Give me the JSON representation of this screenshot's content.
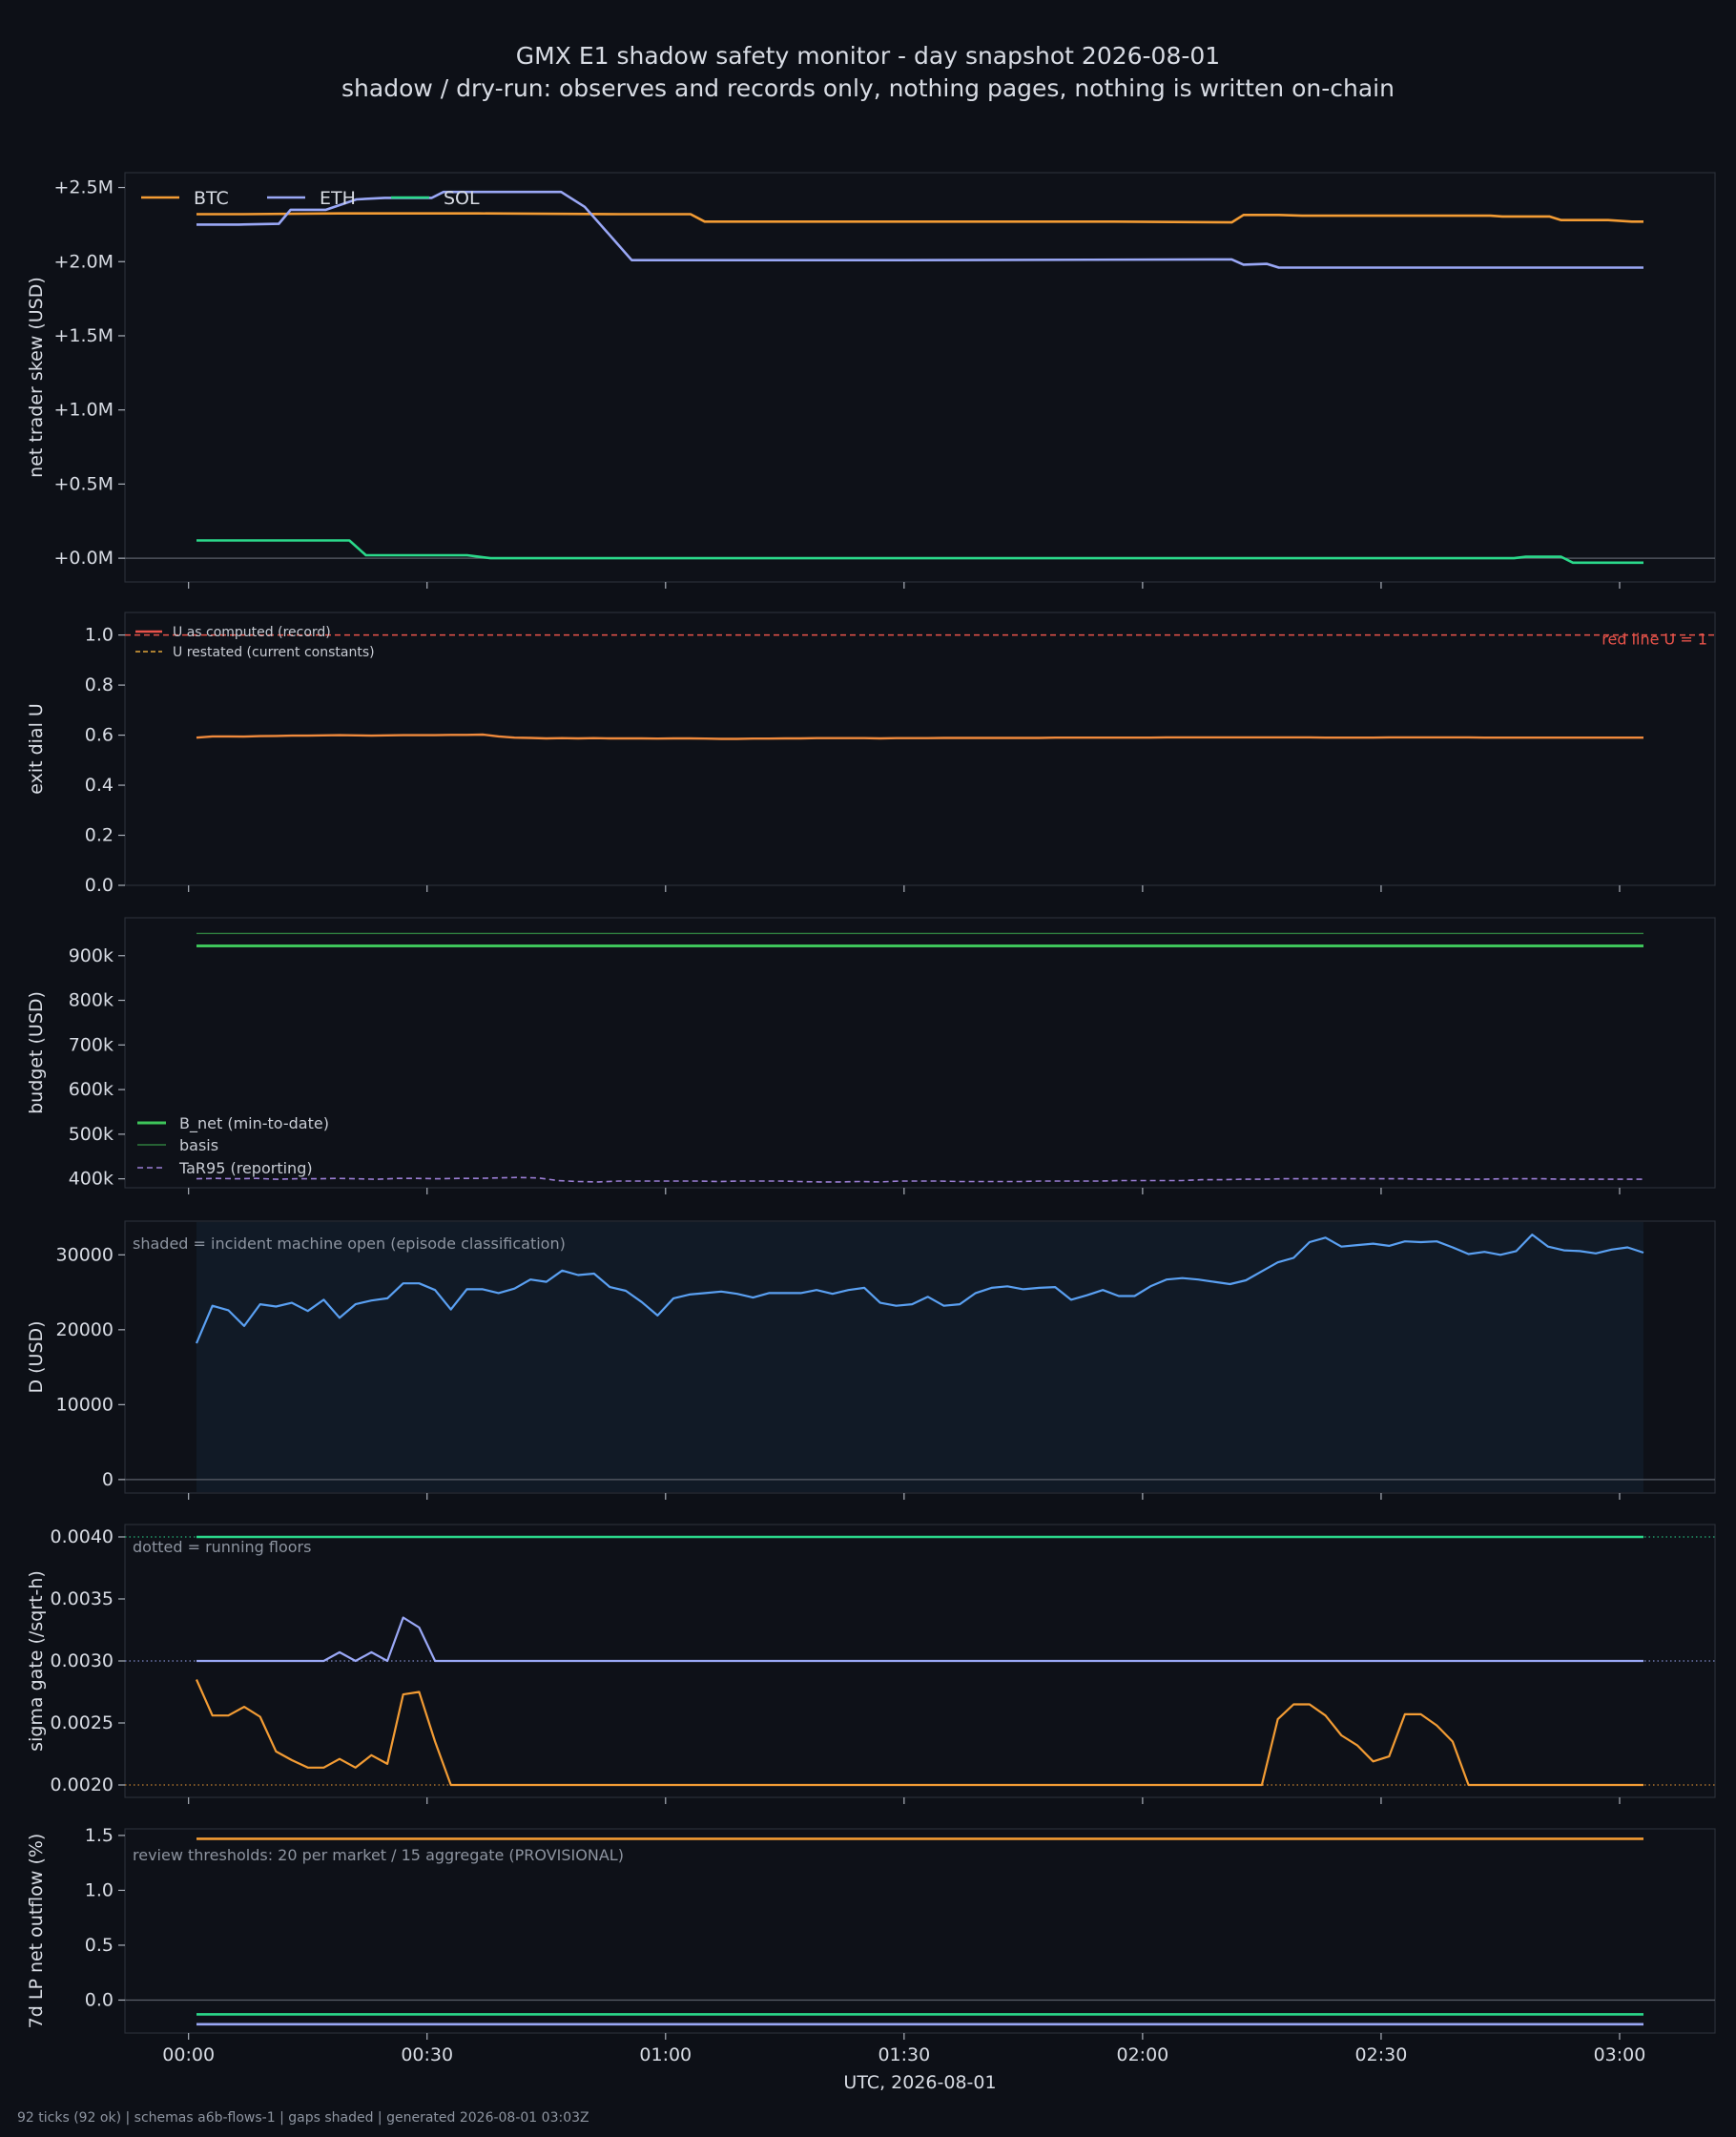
{
  "title": "GMX E1 shadow safety monitor - day snapshot 2026-08-01",
  "subtitle": "shadow / dry-run: observes and records only, nothing pages, nothing is written on-chain",
  "footer": "92 ticks (92 ok) | schemas a6b-flows-1 | gaps shaded | generated 2026-08-01 03:03Z",
  "colors": {
    "background": "#0d1017",
    "btc": "#f39c34",
    "eth": "#9aa8f6",
    "sol": "#2bd98b",
    "red": "#e8534a",
    "green": "#3ec55a",
    "purple": "#9c7fd6",
    "blue": "#5aa0f2"
  },
  "chart_data": [
    {
      "type": "line",
      "ylabel": "net trader skew (USD)",
      "yticks": [
        "+0.0M",
        "+0.5M",
        "+1.0M",
        "+1.5M",
        "+2.0M",
        "+2.5M"
      ],
      "ylim": [
        -0.16,
        2.6
      ],
      "legend": "top-left",
      "series": [
        {
          "name": "BTC",
          "points": [
            [
              0,
              2.32
            ],
            [
              20,
              2.32
            ],
            [
              60,
              2.325
            ],
            [
              120,
              2.325
            ],
            [
              180,
              2.32
            ],
            [
              210,
              2.32
            ],
            [
              216,
              2.27
            ],
            [
              300,
              2.27
            ],
            [
              390,
              2.27
            ],
            [
              440,
              2.265
            ],
            [
              445,
              2.315
            ],
            [
              460,
              2.315
            ],
            [
              470,
              2.31
            ],
            [
              550,
              2.31
            ],
            [
              555,
              2.305
            ],
            [
              575,
              2.305
            ],
            [
              580,
              2.28
            ],
            [
              600,
              2.28
            ],
            [
              610,
              2.27
            ],
            [
              615,
              2.27
            ]
          ]
        },
        {
          "name": "ETH",
          "points": [
            [
              0,
              2.25
            ],
            [
              18,
              2.25
            ],
            [
              35,
              2.255
            ],
            [
              40,
              2.35
            ],
            [
              55,
              2.35
            ],
            [
              68,
              2.42
            ],
            [
              80,
              2.43
            ],
            [
              100,
              2.43
            ],
            [
              105,
              2.47
            ],
            [
              155,
              2.47
            ],
            [
              165,
              2.37
            ],
            [
              175,
              2.19
            ],
            [
              185,
              2.01
            ],
            [
              220,
              2.01
            ],
            [
              300,
              2.01
            ],
            [
              440,
              2.015
            ],
            [
              445,
              1.98
            ],
            [
              455,
              1.985
            ],
            [
              460,
              1.96
            ],
            [
              615,
              1.96
            ]
          ]
        },
        {
          "name": "SOL",
          "points": [
            [
              0,
              0.12
            ],
            [
              65,
              0.12
            ],
            [
              72,
              0.02
            ],
            [
              85,
              0.02
            ],
            [
              115,
              0.02
            ],
            [
              120,
              0.01
            ],
            [
              125,
              0.0
            ],
            [
              560,
              0.0
            ],
            [
              565,
              0.01
            ],
            [
              580,
              0.01
            ],
            [
              585,
              -0.03
            ],
            [
              615,
              -0.03
            ]
          ]
        }
      ]
    },
    {
      "type": "line",
      "ylabel": "exit dial U",
      "yticks": [
        "0.0",
        "0.2",
        "0.4",
        "0.6",
        "0.8",
        "1.0"
      ],
      "ylim": [
        0,
        1.09
      ],
      "redline_label": "red line U = 1",
      "legend": "top-left",
      "series": [
        {
          "name": "U as computed (record)",
          "values": [
            0.59,
            0.595,
            0.595,
            0.594,
            0.596,
            0.597,
            0.598,
            0.598,
            0.599,
            0.6,
            0.599,
            0.598,
            0.599,
            0.6,
            0.6,
            0.6,
            0.601,
            0.601,
            0.602,
            0.595,
            0.59,
            0.589,
            0.587,
            0.588,
            0.587,
            0.588,
            0.587,
            0.587,
            0.587,
            0.586,
            0.587,
            0.587,
            0.586,
            0.585,
            0.585,
            0.586,
            0.586,
            0.587,
            0.587,
            0.588,
            0.588,
            0.588,
            0.588,
            0.587,
            0.588,
            0.588,
            0.588,
            0.589,
            0.589,
            0.589,
            0.589,
            0.589,
            0.589,
            0.589,
            0.59,
            0.59,
            0.59,
            0.59,
            0.59,
            0.59,
            0.59,
            0.591,
            0.591,
            0.591,
            0.591,
            0.591,
            0.591,
            0.591,
            0.591,
            0.591,
            0.591,
            0.59,
            0.59,
            0.59,
            0.59,
            0.591,
            0.591,
            0.591,
            0.591,
            0.591,
            0.591,
            0.59,
            0.59,
            0.59,
            0.59,
            0.59,
            0.59,
            0.59,
            0.59,
            0.59,
            0.59,
            0.59
          ]
        },
        {
          "name": "U restated (current constants)",
          "values": []
        }
      ]
    },
    {
      "type": "line",
      "ylabel": "budget (USD)",
      "yticks": [
        "400k",
        "500k",
        "600k",
        "700k",
        "800k",
        "900k"
      ],
      "ylim": [
        380,
        985
      ],
      "legend": "bottom-left",
      "series": [
        {
          "name": "B_net (min-to-date)",
          "values": [
            922
          ]
        },
        {
          "name": "basis",
          "values": [
            950
          ]
        },
        {
          "name": "TaR95 (reporting)",
          "values": [
            400,
            401,
            400,
            401,
            399,
            400,
            400,
            401,
            400,
            399,
            401,
            401,
            400,
            401,
            401,
            402,
            403,
            402,
            396,
            394,
            393,
            395,
            395,
            395,
            395,
            395,
            394,
            395,
            395,
            395,
            394,
            393,
            393,
            394,
            393,
            395,
            395,
            395,
            394,
            394,
            394,
            394,
            395,
            395,
            395,
            395,
            396,
            396,
            396,
            396,
            398,
            398,
            399,
            399,
            400,
            400,
            400,
            400,
            400,
            400,
            400,
            399,
            399,
            399,
            399,
            400,
            400,
            400,
            399,
            399,
            399,
            399,
            399
          ]
        }
      ]
    },
    {
      "type": "line",
      "ylabel": "D (USD)",
      "yticks": [
        "0",
        "10000",
        "20000",
        "30000"
      ],
      "ylim": [
        -1800,
        34500
      ],
      "note": "shaded = incident machine open (episode classification)",
      "series": [
        {
          "name": "D",
          "values": [
            18200,
            23200,
            22600,
            20500,
            23400,
            23100,
            23600,
            22500,
            24000,
            21600,
            23400,
            23900,
            24200,
            26200,
            26200,
            25300,
            22700,
            25400,
            25400,
            24900,
            25500,
            26700,
            26400,
            27900,
            27300,
            27500,
            25700,
            25200,
            23700,
            21900,
            24200,
            24700,
            24900,
            25100,
            24800,
            24300,
            24900,
            24900,
            24900,
            25300,
            24800,
            25300,
            25600,
            23600,
            23200,
            23400,
            24400,
            23200,
            23400,
            24900,
            25600,
            25800,
            25400,
            25600,
            25700,
            24000,
            24600,
            25300,
            24500,
            24500,
            25800,
            26700,
            26900,
            26700,
            26400,
            26100,
            26600,
            27800,
            29000,
            29600,
            31700,
            32300,
            31100,
            31300,
            31500,
            31200,
            31800,
            31700,
            31800,
            31000,
            30100,
            30400,
            30000,
            30500,
            32700,
            31100,
            30600,
            30500,
            30200,
            30700,
            31000,
            30300
          ]
        }
      ]
    },
    {
      "type": "line",
      "ylabel": "sigma gate (/sqrt-h)",
      "yticks": [
        "0.0020",
        "0.0025",
        "0.0030",
        "0.0035",
        "0.0040"
      ],
      "ylim": [
        0.0019,
        0.0041
      ],
      "note": "dotted = running floors",
      "series": [
        {
          "name": "SOL",
          "values": [
            0.004
          ]
        },
        {
          "name": "ETH",
          "values": [
            0.003,
            0.003,
            0.003,
            0.003,
            0.003,
            0.003,
            0.003,
            0.003,
            0.003,
            0.00307,
            0.003,
            0.00307,
            0.003,
            0.00335,
            0.00327,
            0.003
          ]
        },
        {
          "name": "BTC",
          "values": [
            0.00285,
            0.00256,
            0.00256,
            0.00263,
            0.00255,
            0.00227,
            0.0022,
            0.00214,
            0.00214,
            0.00221,
            0.00214,
            0.00224,
            0.00217,
            0.00273,
            0.00275,
            0.00235,
            0.002,
            0.002,
            0.002,
            0.002,
            0.002,
            0.002,
            0.002,
            0.002,
            0.002,
            0.002,
            0.002,
            0.002,
            0.002,
            0.002,
            0.002,
            0.002,
            0.002,
            0.002,
            0.002,
            0.002,
            0.002,
            0.002,
            0.002,
            0.002,
            0.002,
            0.002,
            0.002,
            0.002,
            0.002,
            0.002,
            0.002,
            0.002,
            0.002,
            0.002,
            0.002,
            0.002,
            0.002,
            0.002,
            0.002,
            0.002,
            0.002,
            0.002,
            0.002,
            0.002,
            0.002,
            0.002,
            0.002,
            0.002,
            0.002,
            0.002,
            0.002,
            0.002,
            0.00253,
            0.00265,
            0.00265,
            0.00256,
            0.0024,
            0.00232,
            0.00219,
            0.00223,
            0.00257,
            0.00257,
            0.00248,
            0.00235,
            0.002,
            0.002,
            0.002,
            0.002,
            0.002,
            0.002,
            0.002,
            0.002,
            0.002,
            0.002,
            0.002,
            0.002
          ]
        }
      ],
      "floors": [
        0.004,
        0.003,
        0.002
      ]
    },
    {
      "type": "line",
      "ylabel": "7d LP net outflow (%)",
      "yticks": [
        "0.0",
        "0.5",
        "1.0",
        "1.5"
      ],
      "ylim": [
        -0.3,
        1.56
      ],
      "note": "review thresholds: 20 per market / 15 aggregate (PROVISIONAL)",
      "series": [
        {
          "name": "BTC",
          "values": [
            1.47
          ]
        },
        {
          "name": "SOL",
          "values": [
            -0.13
          ]
        },
        {
          "name": "ETH",
          "values": [
            -0.22
          ]
        }
      ]
    }
  ],
  "xaxis": {
    "xlabel": "UTC, 2026-08-01",
    "ticks": [
      "00:00",
      "00:30",
      "01:00",
      "01:30",
      "02:00",
      "02:30",
      "03:00"
    ],
    "xlim_minutes": [
      -8,
      192
    ],
    "tick_minutes": [
      0,
      30,
      60,
      90,
      120,
      150,
      180
    ],
    "data_start_minutes": 1,
    "data_end_minutes": 183
  }
}
